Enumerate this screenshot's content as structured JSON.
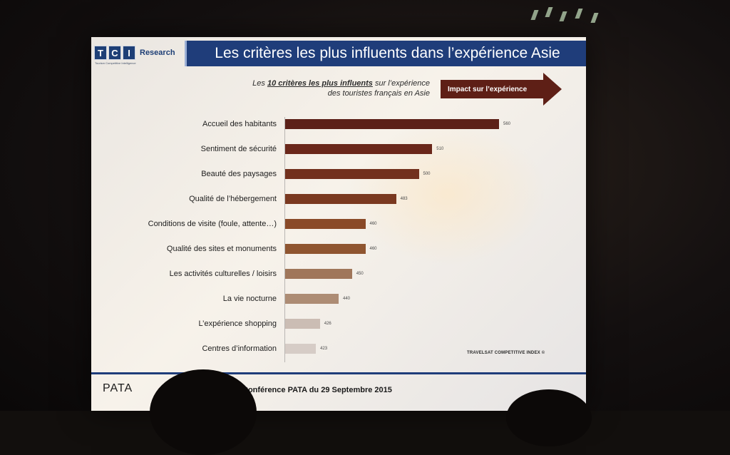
{
  "slide": {
    "logo_letters": [
      "T",
      "C",
      "I"
    ],
    "logo_word": "Research",
    "logo_tagline": "Tourism Competitive Intelligence",
    "title": "Les critères les plus influents dans l’expérience Asie",
    "subtitle_prefix": "Les ",
    "subtitle_emphasis": "10 critères les plus influents",
    "subtitle_suffix": " sur  l’expérience",
    "subtitle_line2": "des touristes français en Asie",
    "arrow_label": "Impact sur l’expérience",
    "source": "TRAVELSAT COMPETITIVE INDEX ©",
    "footer_org": "PATA",
    "footer_text": "Conférence PATA du 29 Septembre 2015"
  },
  "chart_data": {
    "type": "bar",
    "orientation": "horizontal",
    "title": "Les critères les plus influents dans l’expérience Asie",
    "categories": [
      "Accueil des habitants",
      "Sentiment de sécurité",
      "Beauté des paysages",
      "Qualité de l’hébergement",
      "Conditions de visite (foule, attente…)",
      "Qualité des sites et monuments",
      "Les activités culturelles / loisirs",
      "La vie nocturne",
      "L’expérience shopping",
      "Centres d’information"
    ],
    "values": [
      560,
      510,
      500,
      483,
      460,
      460,
      450,
      440,
      426,
      423
    ],
    "value_labels": [
      "560",
      "510",
      "500",
      "483",
      "460",
      "460",
      "450",
      "440",
      "426",
      "423"
    ],
    "xlim": [
      400,
      560
    ],
    "colors": [
      "#5c2018",
      "#6a271a",
      "#72301d",
      "#7a3920",
      "#8a4a28",
      "#8f5530",
      "#a0765a",
      "#ad8c74",
      "#cbbdb4",
      "#d6ccc6"
    ],
    "grid": false,
    "legend": "none"
  }
}
